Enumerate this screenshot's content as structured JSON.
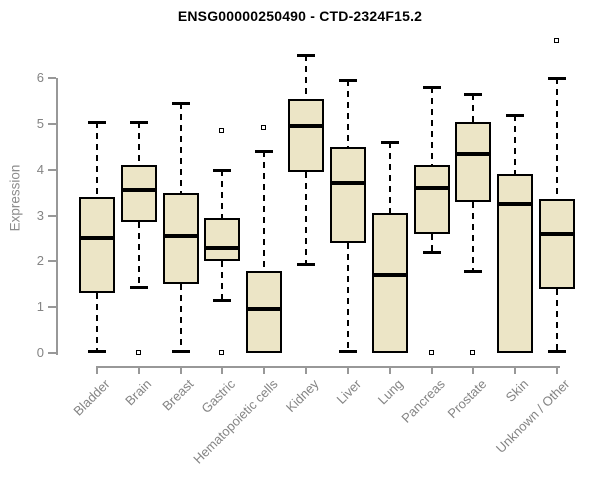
{
  "page": {
    "background": "#ffffff"
  },
  "chart_data": {
    "type": "boxplot",
    "title": "ENSG00000250490 - CTD-2324F15.2",
    "ylabel": "Expression",
    "xlabel": "",
    "ylim": [
      0,
      6.9
    ],
    "yticks": [
      0,
      1,
      2,
      3,
      4,
      5,
      6
    ],
    "grid": false,
    "legend": false,
    "box_fill": "#ECE5C6",
    "box_border": "#000000",
    "axis_color": "#989898",
    "tick_label_color": "#848484",
    "categories": [
      "Bladder",
      "Brain",
      "Breast",
      "Gastric",
      "Hematopoietic cells",
      "Kidney",
      "Liver",
      "Lung",
      "Pancreas",
      "Prostate",
      "Skin",
      "Unknown / Other"
    ],
    "boxes": [
      {
        "category": "Bladder",
        "whisker_low": 0.05,
        "q1": 1.3,
        "median": 2.5,
        "q3": 3.4,
        "whisker_high": 5.05,
        "outliers": []
      },
      {
        "category": "Brain",
        "whisker_low": 1.45,
        "q1": 2.85,
        "median": 3.55,
        "q3": 4.1,
        "whisker_high": 5.05,
        "outliers": [
          0
        ]
      },
      {
        "category": "Breast",
        "whisker_low": 0.05,
        "q1": 1.5,
        "median": 2.55,
        "q3": 3.5,
        "whisker_high": 5.45,
        "outliers": []
      },
      {
        "category": "Gastric",
        "whisker_low": 1.15,
        "q1": 2.0,
        "median": 2.3,
        "q3": 2.95,
        "whisker_high": 4.0,
        "outliers": [
          4.85,
          0
        ]
      },
      {
        "category": "Hematopoietic cells",
        "whisker_low": 0,
        "q1": 0,
        "median": 0.95,
        "q3": 1.8,
        "whisker_high": 4.4,
        "outliers": [
          4.9
        ]
      },
      {
        "category": "Kidney",
        "whisker_low": 1.95,
        "q1": 3.95,
        "median": 4.95,
        "q3": 5.55,
        "whisker_high": 6.5,
        "outliers": []
      },
      {
        "category": "Liver",
        "whisker_low": 0.05,
        "q1": 2.4,
        "median": 3.7,
        "q3": 4.5,
        "whisker_high": 5.95,
        "outliers": []
      },
      {
        "category": "Lung",
        "whisker_low": 0,
        "q1": 0,
        "median": 1.7,
        "q3": 3.05,
        "whisker_high": 4.6,
        "outliers": []
      },
      {
        "category": "Pancreas",
        "whisker_low": 2.2,
        "q1": 2.6,
        "median": 3.6,
        "q3": 4.1,
        "whisker_high": 5.8,
        "outliers": [
          0
        ]
      },
      {
        "category": "Prostate",
        "whisker_low": 1.8,
        "q1": 3.3,
        "median": 4.35,
        "q3": 5.05,
        "whisker_high": 5.65,
        "outliers": [
          0
        ]
      },
      {
        "category": "Skin",
        "whisker_low": 0,
        "q1": 0,
        "median": 3.25,
        "q3": 3.9,
        "whisker_high": 5.2,
        "outliers": []
      },
      {
        "category": "Unknown / Other",
        "whisker_low": 0.05,
        "q1": 1.4,
        "median": 2.6,
        "q3": 3.35,
        "whisker_high": 6.0,
        "outliers": [
          6.8
        ]
      }
    ]
  }
}
